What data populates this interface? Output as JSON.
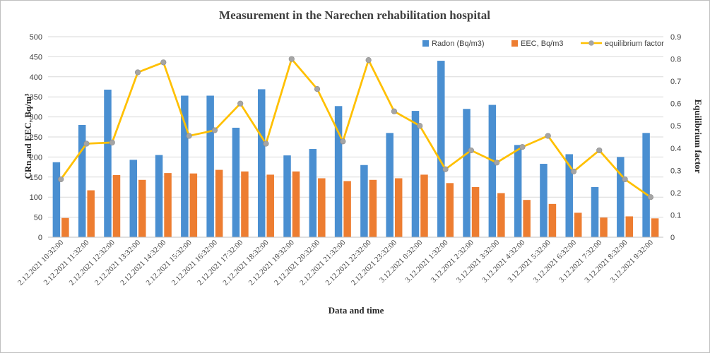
{
  "chart_data": {
    "type": "bar",
    "title": "Measurement in the Narechen rehabilitation hospital",
    "xlabel": "Data and time",
    "ylabel": "CRn and EEC, Bq/m³",
    "y2label": "Equilibrium factor",
    "ylim": [
      0,
      500
    ],
    "y2lim": [
      0,
      0.9
    ],
    "yticks": [
      "0",
      "50",
      "100",
      "150",
      "200",
      "250",
      "300",
      "350",
      "400",
      "450",
      "500"
    ],
    "y2ticks": [
      "0",
      "0.1",
      "0.2",
      "0.3",
      "0.4",
      "0.5",
      "0.6",
      "0.7",
      "0.8",
      "0.9"
    ],
    "categories": [
      "2.12.2021 10:32:00",
      "2.12.2021 11:32:00",
      "2.12.2021 12:32:00",
      "2.12.2021 13:32:00",
      "2.12.2021 14:32:00",
      "2.12.2021 15:32:00",
      "2.12.2021 16:32:00",
      "2.12.2021 17:32:00",
      "2.12.2021 18:32:00",
      "2.12.2021 19:32:00",
      "2.12.2021 20:32:00",
      "2.12.2021 21:32:00",
      "2.12.2021 22:32:00",
      "2.12.2021 23:32:00",
      "3.12.2021 0:32:00",
      "3.12.2021 1:32:00",
      "3.12.2021 2:32:00",
      "3.12.2021 3:32:00",
      "3.12.2021 4:32:00",
      "3.12.2021 5:32:00",
      "3.12.2021 6:32:00",
      "3.12.2021 7:32:00",
      "3.12.2021 8:32:00",
      "3.12.2021 9:32:00"
    ],
    "series": [
      {
        "name": "Radon (Bq/m3)",
        "kind": "bar",
        "axis": "left",
        "color": "#4a8fd1",
        "values": [
          187,
          280,
          368,
          193,
          205,
          353,
          353,
          273,
          369,
          204,
          220,
          327,
          180,
          260,
          315,
          440,
          320,
          330,
          230,
          183,
          207,
          125,
          200,
          260
        ]
      },
      {
        "name": "EEC, Bq/m3",
        "kind": "bar",
        "axis": "left",
        "color": "#ed7d31",
        "values": [
          48,
          117,
          155,
          143,
          160,
          159,
          168,
          164,
          156,
          164,
          147,
          140,
          143,
          147,
          156,
          135,
          125,
          110,
          93,
          83,
          61,
          49,
          52,
          47
        ]
      },
      {
        "name": "equilibrium factor",
        "kind": "line",
        "axis": "right",
        "color": "#ffc000",
        "marker_color": "#a5a5a5",
        "values": [
          0.26,
          0.42,
          0.425,
          0.74,
          0.785,
          0.455,
          0.48,
          0.6,
          0.42,
          0.8,
          0.665,
          0.43,
          0.795,
          0.565,
          0.5,
          0.305,
          0.39,
          0.335,
          0.405,
          0.455,
          0.295,
          0.39,
          0.26,
          0.18
        ]
      }
    ],
    "legend_position": "top-right"
  }
}
